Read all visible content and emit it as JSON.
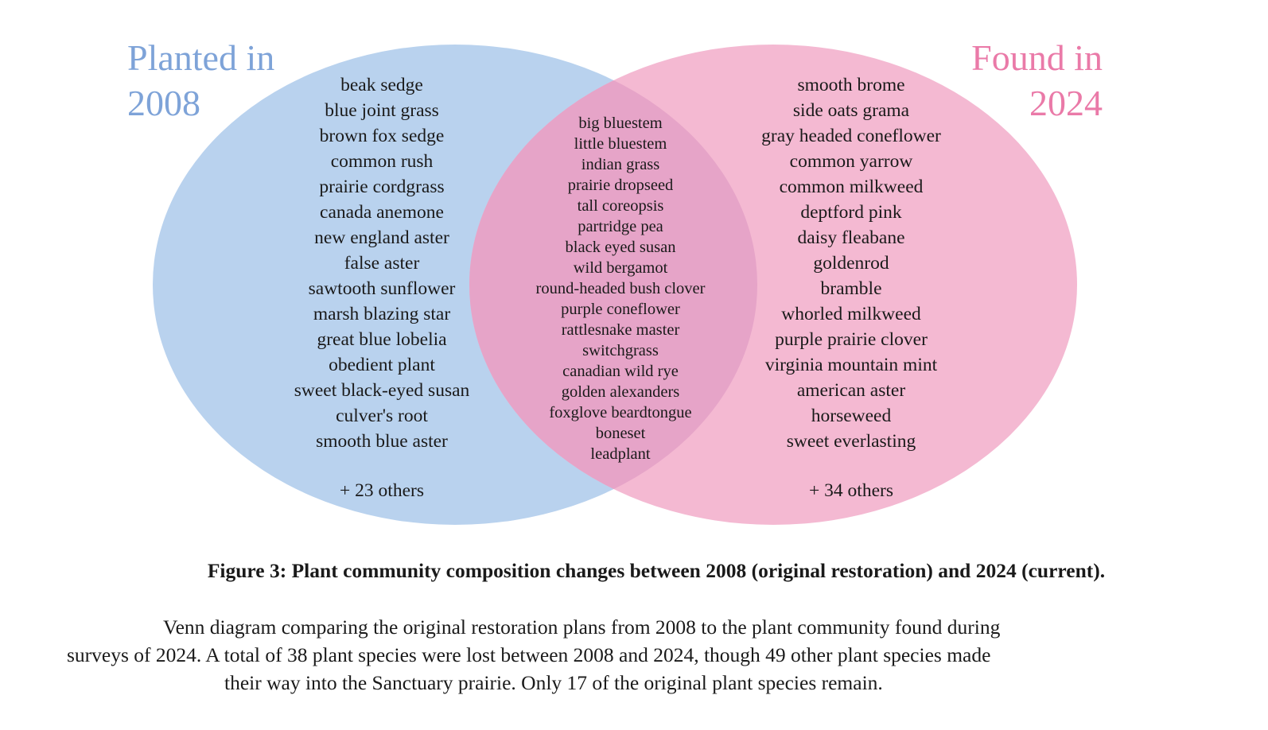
{
  "colors": {
    "left_fill": "#b9d2ee",
    "right_fill": "#f4b9d2",
    "overlap_fill": "#e6a4c8",
    "left_title": "#7ea3d8",
    "right_title": "#ea7aa8"
  },
  "venn": {
    "left_title": [
      "Planted in",
      "2008"
    ],
    "right_title": [
      "Found in",
      "2024"
    ],
    "left_only": [
      "beak sedge",
      "blue joint grass",
      "brown fox sedge",
      "common rush",
      "prairie cordgrass",
      "canada anemone",
      "new england aster",
      "false aster",
      "sawtooth sunflower",
      "marsh blazing star",
      "great blue lobelia",
      "obedient plant",
      "sweet black-eyed susan",
      "culver's root",
      "smooth blue aster"
    ],
    "left_others": "+ 23 others",
    "both": [
      "big bluestem",
      "little bluestem",
      "indian grass",
      "prairie dropseed",
      "tall coreopsis",
      "partridge pea",
      "black eyed susan",
      "wild bergamot",
      "round-headed bush clover",
      "purple coneflower",
      "rattlesnake master",
      "switchgrass",
      "canadian wild rye",
      "golden alexanders",
      "foxglove beardtongue",
      "boneset",
      "leadplant"
    ],
    "right_only": [
      "smooth brome",
      "side oats grama",
      "gray headed coneflower",
      "common yarrow",
      "common milkweed",
      "deptford pink",
      "daisy fleabane",
      "goldenrod",
      "bramble",
      "whorled milkweed",
      "purple prairie clover",
      "virginia mountain mint",
      "american aster",
      "horseweed",
      "sweet everlasting"
    ],
    "right_others": "+ 34 others"
  },
  "caption": {
    "title": "Figure 3: Plant community composition changes between 2008 (original restoration) and 2024 (current).",
    "body_lines": [
      "Venn diagram comparing the original restoration plans from 2008 to the plant community found during",
      "surveys of 2024. A total of 38 plant species were lost between 2008 and 2024, though 49 other plant species made",
      "their way into the Sanctuary prairie. Only 17 of the original plant species remain."
    ]
  }
}
